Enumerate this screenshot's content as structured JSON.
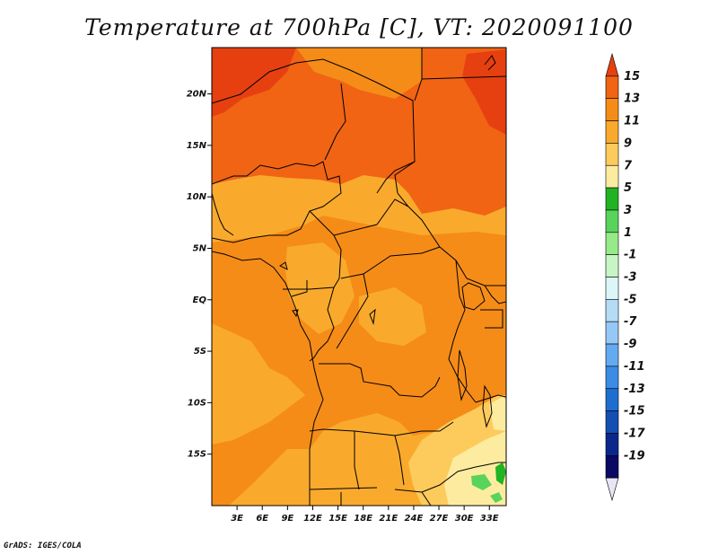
{
  "title": "Temperature at 700hPa [C], VT: 2020091100",
  "credit": "GrADS: IGES/COLA",
  "map": {
    "lat_labels": [
      {
        "text": "20N",
        "lat": 20
      },
      {
        "text": "15N",
        "lat": 15
      },
      {
        "text": "10N",
        "lat": 10
      },
      {
        "text": "5N",
        "lat": 5
      },
      {
        "text": "EQ",
        "lat": 0
      },
      {
        "text": "5S",
        "lat": -5
      },
      {
        "text": "10S",
        "lat": -10
      },
      {
        "text": "15S",
        "lat": -15
      }
    ],
    "lon_labels": [
      {
        "text": "3E",
        "lon": 3
      },
      {
        "text": "6E",
        "lon": 6
      },
      {
        "text": "9E",
        "lon": 9
      },
      {
        "text": "12E",
        "lon": 12
      },
      {
        "text": "15E",
        "lon": 15
      },
      {
        "text": "18E",
        "lon": 18
      },
      {
        "text": "21E",
        "lon": 21
      },
      {
        "text": "24E",
        "lon": 24
      },
      {
        "text": "27E",
        "lon": 27
      },
      {
        "text": "30E",
        "lon": 30
      },
      {
        "text": "33E",
        "lon": 33
      }
    ],
    "lon_range": [
      0,
      35
    ],
    "lat_range": [
      -20,
      24.5
    ]
  },
  "colorbar": {
    "labels": [
      "15",
      "13",
      "11",
      "9",
      "7",
      "5",
      "3",
      "1",
      "-1",
      "-3",
      "-5",
      "-7",
      "-9",
      "-11",
      "-13",
      "-15",
      "-17",
      "-19"
    ],
    "colors": [
      "#e64010",
      "#f06414",
      "#f58c18",
      "#f9aa2c",
      "#fdcb5c",
      "#fdeca0",
      "#21b324",
      "#58d35c",
      "#96ea88",
      "#c8f5c4",
      "#dcf5f8",
      "#b4dcf5",
      "#96c8f5",
      "#64aaf0",
      "#3c8ce6",
      "#1e6ed2",
      "#1450b4",
      "#0a288c",
      "#0a0a64",
      "#e6e6f5"
    ]
  }
}
